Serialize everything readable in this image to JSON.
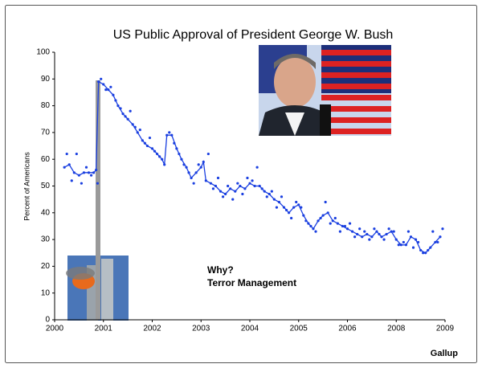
{
  "chart_data": {
    "type": "line",
    "title": "US Public Approval of President George W. Bush",
    "y_label": "Percent of Americans",
    "annotations": [
      "Why?",
      "Terror Management"
    ],
    "source": "Gallup",
    "xlim": [
      2000,
      2008
    ],
    "xticks": [
      2000,
      2001,
      2002,
      2003,
      2004,
      2005,
      2006,
      {
        "value": 2007,
        "label": "2008"
      },
      {
        "value": 2008,
        "label": "2009"
      }
    ],
    "ylim": [
      0,
      100
    ],
    "yticks": [
      0,
      10,
      20,
      30,
      40,
      50,
      60,
      70,
      80,
      90,
      100
    ],
    "series": [
      {
        "color": "#1a3fe0",
        "x": [
          2000.2,
          2000.3,
          2000.4,
          2000.5,
          2000.6,
          2000.7,
          2000.8,
          2000.85,
          2000.9,
          2001.0,
          2001.1,
          2001.2,
          2001.3,
          2001.4,
          2001.5,
          2001.6,
          2001.7,
          2001.8,
          2001.9,
          2002.0,
          2002.1,
          2002.2,
          2002.25,
          2002.3,
          2002.4,
          2002.5,
          2002.6,
          2002.7,
          2002.8,
          2002.9,
          2003.0,
          2003.05,
          2003.1,
          2003.2,
          2003.3,
          2003.4,
          2003.5,
          2003.6,
          2003.7,
          2003.8,
          2003.9,
          2004.0,
          2004.1,
          2004.2,
          2004.3,
          2004.4,
          2004.5,
          2004.6,
          2004.7,
          2004.8,
          2004.9,
          2005.0,
          2005.1,
          2005.2,
          2005.3,
          2005.4,
          2005.5,
          2005.6,
          2005.7,
          2005.8,
          2005.9,
          2006.0,
          2006.1,
          2006.2,
          2006.3,
          2006.4,
          2006.5,
          2006.6,
          2006.7,
          2006.8,
          2006.9,
          2007.0,
          2007.1,
          2007.2,
          2007.3,
          2007.4,
          2007.5,
          2007.6,
          2007.7,
          2007.8,
          2007.9
        ],
        "values": [
          57,
          58,
          55,
          54,
          55,
          55,
          55,
          56,
          89,
          88,
          86,
          84,
          80,
          77,
          75,
          73,
          70,
          67,
          65,
          64,
          62,
          60,
          58,
          69,
          69,
          64,
          60,
          57,
          53,
          55,
          57,
          59,
          52,
          51,
          50,
          48,
          47,
          49,
          48,
          50,
          49,
          51,
          50,
          50,
          48,
          47,
          45,
          44,
          42,
          40,
          42,
          43,
          39,
          36,
          34,
          37,
          39,
          40,
          37,
          36,
          35,
          34,
          33,
          32,
          31,
          32,
          31,
          33,
          31,
          32,
          33,
          30,
          28,
          28,
          31,
          30,
          26,
          25,
          27,
          29,
          31
        ]
      },
      {
        "color": "#1a3fe0",
        "x": [
          2000.25,
          2000.35,
          2000.45,
          2000.55,
          2000.65,
          2000.75,
          2000.88,
          2000.95,
          2001.05,
          2001.15,
          2001.25,
          2001.35,
          2001.45,
          2001.55,
          2001.65,
          2001.75,
          2001.85,
          2001.95,
          2002.05,
          2002.15,
          2002.35,
          2002.45,
          2002.55,
          2002.65,
          2002.75,
          2002.85,
          2002.95,
          2003.15,
          2003.25,
          2003.35,
          2003.45,
          2003.55,
          2003.65,
          2003.75,
          2003.85,
          2003.95,
          2004.05,
          2004.15,
          2004.25,
          2004.35,
          2004.45,
          2004.55,
          2004.65,
          2004.75,
          2004.85,
          2004.95,
          2005.05,
          2005.15,
          2005.25,
          2005.35,
          2005.45,
          2005.55,
          2005.65,
          2005.75,
          2005.85,
          2005.95,
          2006.05,
          2006.15,
          2006.25,
          2006.35,
          2006.45,
          2006.55,
          2006.65,
          2006.75,
          2006.85,
          2006.95,
          2007.05,
          2007.15,
          2007.25,
          2007.35,
          2007.45,
          2007.55,
          2007.65,
          2007.75,
          2007.85,
          2007.95
        ],
        "values": [
          62,
          52,
          62,
          51,
          57,
          54,
          51,
          90,
          86,
          87,
          82,
          79,
          76,
          78,
          72,
          71,
          66,
          68,
          63,
          61,
          70,
          66,
          62,
          58,
          55,
          51,
          58,
          62,
          49,
          53,
          46,
          50,
          45,
          51,
          47,
          53,
          52,
          57,
          49,
          46,
          48,
          42,
          46,
          41,
          38,
          44,
          42,
          37,
          35,
          33,
          38,
          44,
          36,
          38,
          33,
          35,
          36,
          31,
          34,
          33,
          30,
          34,
          32,
          30,
          34,
          33,
          28,
          29,
          33,
          27,
          29,
          25,
          26,
          33,
          29,
          34
        ]
      }
    ]
  }
}
